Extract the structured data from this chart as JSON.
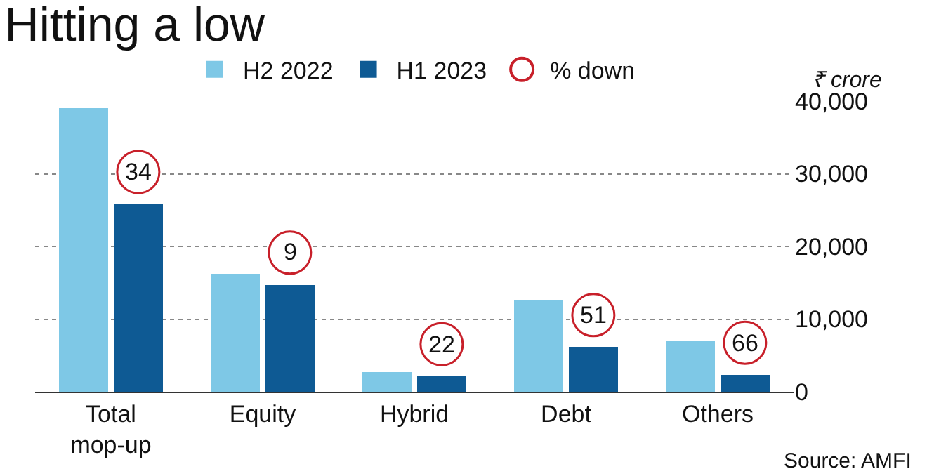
{
  "chart_data": {
    "type": "bar",
    "title": "Hitting a low",
    "ylabel": "₹ crore",
    "categories": [
      "Total mop-up",
      "Equity",
      "Hybrid",
      "Debt",
      "Others"
    ],
    "series": [
      {
        "name": "H2 2022",
        "color": "#7ec8e6",
        "values": [
          39000,
          16200,
          2700,
          12500,
          7000
        ]
      },
      {
        "name": "H1 2023",
        "color": "#0e5a94",
        "values": [
          25800,
          14700,
          2100,
          6100,
          2300
        ]
      },
      {
        "name": "% down",
        "type": "scatter",
        "color": "#c8202a",
        "marker": "circle",
        "values": [
          null,
          null,
          null,
          null,
          null
        ]
      }
    ],
    "ylim": [
      0,
      40000
    ],
    "yticks": [
      {
        "value": 0,
        "label": "0"
      },
      {
        "value": 10000,
        "label": "10,000"
      },
      {
        "value": 20000,
        "label": "20,000"
      },
      {
        "value": 30000,
        "label": "30,000"
      },
      {
        "value": 40000,
        "label": "40,000"
      }
    ],
    "grid": "y",
    "legend": "top",
    "annotations": [
      {
        "text": "34",
        "x": "Total mop-up",
        "y": 25800
      },
      {
        "text": "9",
        "x": "Equity",
        "y": 14700
      },
      {
        "text": "22",
        "x": "Hybrid",
        "y": 2100
      },
      {
        "text": "51",
        "x": "Debt",
        "y": 6100
      },
      {
        "text": "66",
        "x": "Others",
        "y": 2300
      },
      "Source: AMFI"
    ]
  }
}
